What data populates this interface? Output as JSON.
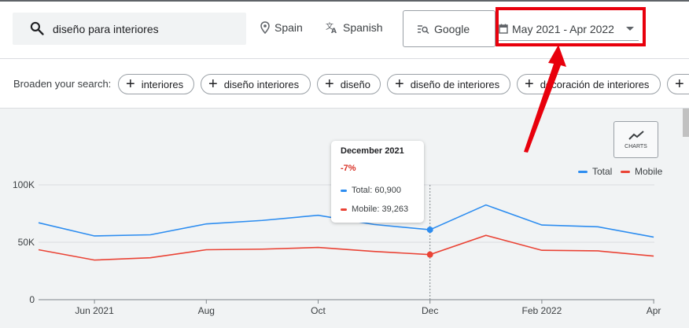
{
  "search": {
    "query": "diseño para interiores"
  },
  "filters": {
    "location": "Spain",
    "language": "Spanish",
    "engine": "Google",
    "date_range": "May 2021 - Apr 2022"
  },
  "broaden": {
    "label": "Broaden your search:",
    "chips": [
      "interiores",
      "diseño interiores",
      "diseño",
      "diseño de interiores",
      "decoración de interiores"
    ]
  },
  "charts_button": {
    "label": "CHARTS"
  },
  "legend": {
    "total": "Total",
    "mobile": "Mobile"
  },
  "tooltip": {
    "title": "December 2021",
    "change": "-7%",
    "total": "Total: 60,900",
    "mobile": "Mobile: 39,263"
  },
  "colors": {
    "total": "#2d8df0",
    "mobile": "#ea4335",
    "highlight": "#e8000c",
    "change": "#d93025"
  },
  "chart_data": {
    "type": "line",
    "x": [
      "May 2021",
      "Jun 2021",
      "Jul 2021",
      "Aug 2021",
      "Sep 2021",
      "Oct 2021",
      "Nov 2021",
      "Dec 2021",
      "Jan 2022",
      "Feb 2022",
      "Mar 2022",
      "Apr 2022"
    ],
    "x_tick_labels": [
      "Jun 2021",
      "Aug",
      "Oct",
      "Dec",
      "Feb 2022",
      "Apr"
    ],
    "x_tick_positions": [
      1,
      3,
      5,
      7,
      9,
      11
    ],
    "y_tick_labels": [
      "0",
      "50K",
      "100K"
    ],
    "y_tick_values": [
      0,
      50000,
      100000
    ],
    "ylim": [
      0,
      100000
    ],
    "series": [
      {
        "name": "Total",
        "values": [
          67000,
          55500,
          56500,
          66000,
          69000,
          73500,
          65500,
          60900,
          82500,
          65000,
          63500,
          54500
        ]
      },
      {
        "name": "Mobile",
        "values": [
          43500,
          34500,
          36500,
          43500,
          44000,
          45500,
          42000,
          39263,
          56000,
          43000,
          42500,
          38000
        ]
      }
    ],
    "highlighted_index": 7,
    "grid": true,
    "legend_position": "top-right"
  }
}
